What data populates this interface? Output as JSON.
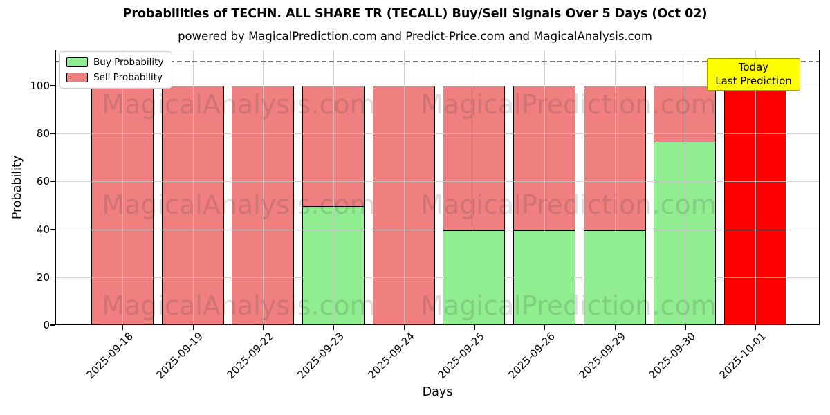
{
  "title": "Probabilities of TECHN. ALL SHARE TR (TECALL) Buy/Sell Signals Over 5 Days (Oct 02)",
  "subtitle": "powered by MagicalPrediction.com and Predict-Price.com and MagicalAnalysis.com",
  "axes": {
    "xlabel": "Days",
    "ylabel": "Probability",
    "yticks": [
      0,
      20,
      40,
      60,
      80,
      100
    ]
  },
  "legend": {
    "items": [
      {
        "label": "Buy Probability",
        "color": "#90ee90"
      },
      {
        "label": "Sell Probability",
        "color": "#f08080"
      }
    ]
  },
  "annotation": {
    "lines": [
      "Today",
      "Last Prediction"
    ],
    "bg_color": "#ffff00",
    "border_color": "#9e9e00"
  },
  "watermarks": {
    "left_text": "MagicalAnalysis.com",
    "right_text": "MagicalPrediction.com"
  },
  "chart_data": {
    "type": "bar",
    "stacked": true,
    "title": "Probabilities of TECHN. ALL SHARE TR (TECALL) Buy/Sell Signals Over 5 Days (Oct 02)",
    "xlabel": "Days",
    "ylabel": "Probability",
    "categories": [
      "2025-09-18",
      "2025-09-19",
      "2025-09-22",
      "2025-09-23",
      "2025-09-24",
      "2025-09-25",
      "2025-09-26",
      "2025-09-29",
      "2025-09-30",
      "2025-10-01"
    ],
    "series": [
      {
        "name": "Buy Probability",
        "color": "#90ee90",
        "values": [
          0,
          0,
          0,
          49,
          0,
          39,
          39,
          39,
          76,
          0
        ]
      },
      {
        "name": "Sell Probability",
        "color": "#f08080",
        "values": [
          100,
          100,
          100,
          51,
          100,
          61,
          61,
          61,
          24,
          100
        ]
      }
    ],
    "highlight": {
      "index": 9,
      "series": "Sell Probability",
      "color": "#ff0000"
    },
    "ylim": [
      0,
      115
    ],
    "dashed_line_y": 110,
    "grid": true,
    "legend_position": "upper left"
  }
}
